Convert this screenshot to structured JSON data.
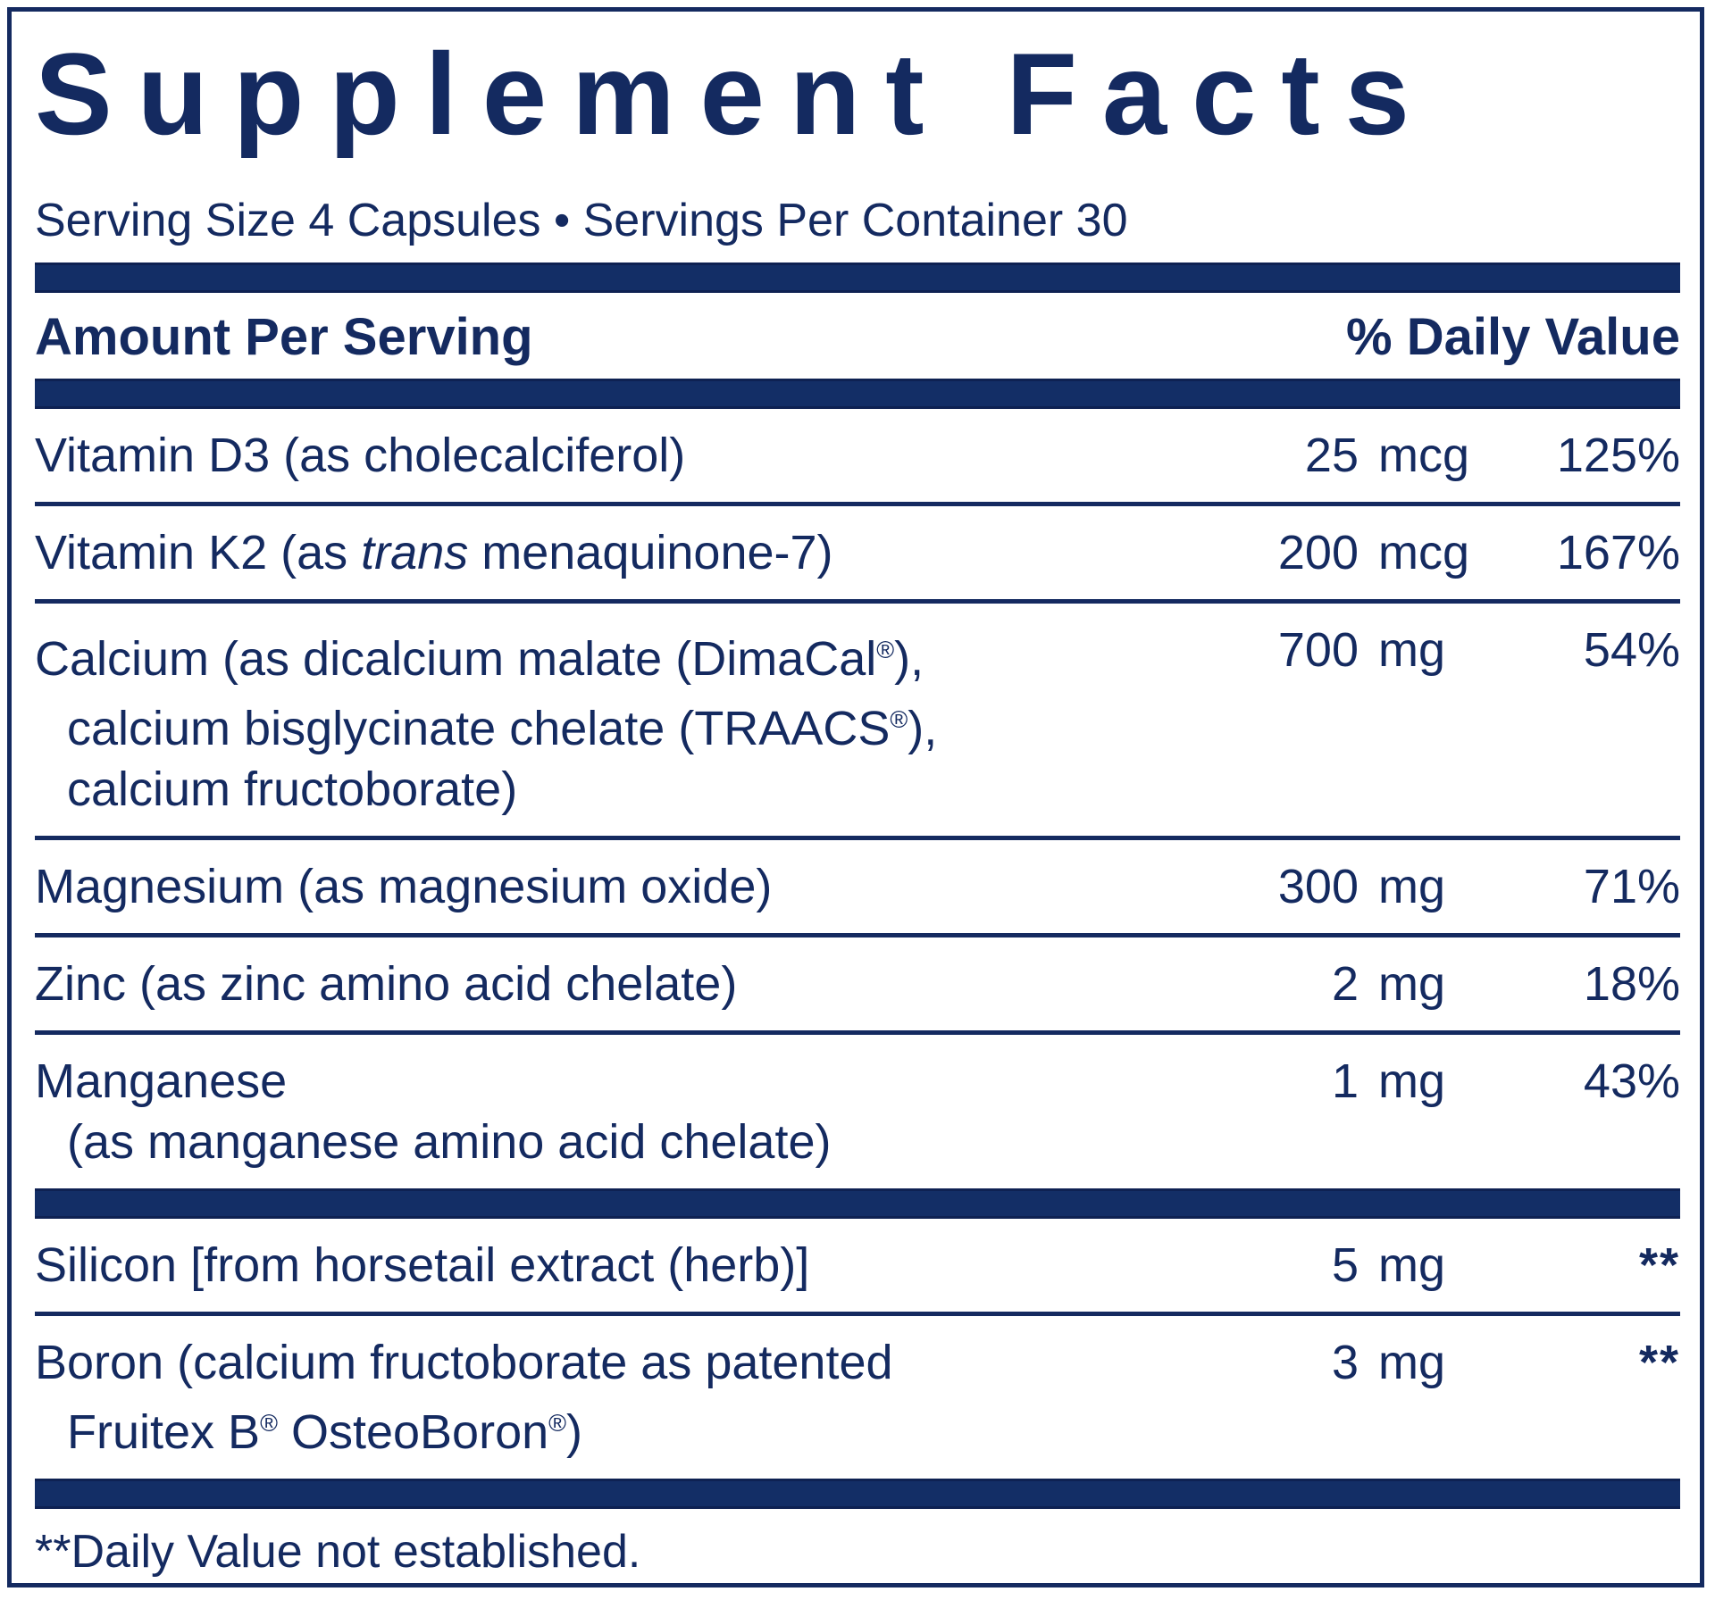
{
  "colors": {
    "navy": "#142a60",
    "bar_fill": "#132e66",
    "bar_edge": "#0e2152"
  },
  "panel": {
    "title": "Supplement Facts",
    "serving_line": "Serving Size 4 Capsules • Servings Per Container 30",
    "header": {
      "amount": "Amount Per Serving",
      "daily_value": "% Daily Value"
    },
    "footnote": "**Daily Value not established."
  },
  "rows": [
    {
      "name_lines": [
        {
          "indent": false,
          "segments": [
            {
              "text": "Vitamin D3 (as cholecalciferol)"
            }
          ]
        }
      ],
      "amount": "25",
      "unit": "mcg",
      "dv": "125%",
      "divider_after": "line"
    },
    {
      "name_lines": [
        {
          "indent": false,
          "segments": [
            {
              "text": "Vitamin K2 (as "
            },
            {
              "text": "trans",
              "italic": true
            },
            {
              "text": " menaquinone-7)"
            }
          ]
        }
      ],
      "amount": "200",
      "unit": "mcg",
      "dv": "167%",
      "divider_after": "line"
    },
    {
      "name_lines": [
        {
          "indent": false,
          "segments": [
            {
              "text": "Calcium (as dicalcium malate (DimaCal"
            },
            {
              "text": "®",
              "sup": true
            },
            {
              "text": "),"
            }
          ]
        },
        {
          "indent": true,
          "segments": [
            {
              "text": "calcium bisglycinate chelate (TRAACS"
            },
            {
              "text": "®",
              "sup": true
            },
            {
              "text": "),"
            }
          ]
        },
        {
          "indent": true,
          "segments": [
            {
              "text": "calcium fructoborate)"
            }
          ]
        }
      ],
      "amount": "700",
      "unit": "mg",
      "dv": "54%",
      "divider_after": "line"
    },
    {
      "name_lines": [
        {
          "indent": false,
          "segments": [
            {
              "text": "Magnesium (as magnesium oxide)"
            }
          ]
        }
      ],
      "amount": "300",
      "unit": "mg",
      "dv": "71%",
      "divider_after": "line"
    },
    {
      "name_lines": [
        {
          "indent": false,
          "segments": [
            {
              "text": "Zinc (as zinc amino acid chelate)"
            }
          ]
        }
      ],
      "amount": "2",
      "unit": "mg",
      "dv": "18%",
      "divider_after": "line"
    },
    {
      "name_lines": [
        {
          "indent": false,
          "segments": [
            {
              "text": "Manganese"
            }
          ]
        },
        {
          "indent": true,
          "segments": [
            {
              "text": "(as manganese amino acid chelate)"
            }
          ]
        }
      ],
      "amount": "1",
      "unit": "mg",
      "dv": "43%",
      "divider_after": "bar"
    },
    {
      "name_lines": [
        {
          "indent": false,
          "segments": [
            {
              "text": "Silicon [from horsetail extract (herb)]"
            }
          ]
        }
      ],
      "amount": "5",
      "unit": "mg",
      "dv": "**",
      "divider_after": "line"
    },
    {
      "name_lines": [
        {
          "indent": false,
          "segments": [
            {
              "text": "Boron (calcium fructoborate as patented"
            }
          ]
        },
        {
          "indent": true,
          "segments": [
            {
              "text": "Fruitex B"
            },
            {
              "text": "®",
              "sup": true
            },
            {
              "text": " OsteoBoron"
            },
            {
              "text": "®",
              "sup": true
            },
            {
              "text": ")"
            }
          ]
        }
      ],
      "amount": "3",
      "unit": "mg",
      "dv": "**",
      "divider_after": "bar"
    }
  ]
}
